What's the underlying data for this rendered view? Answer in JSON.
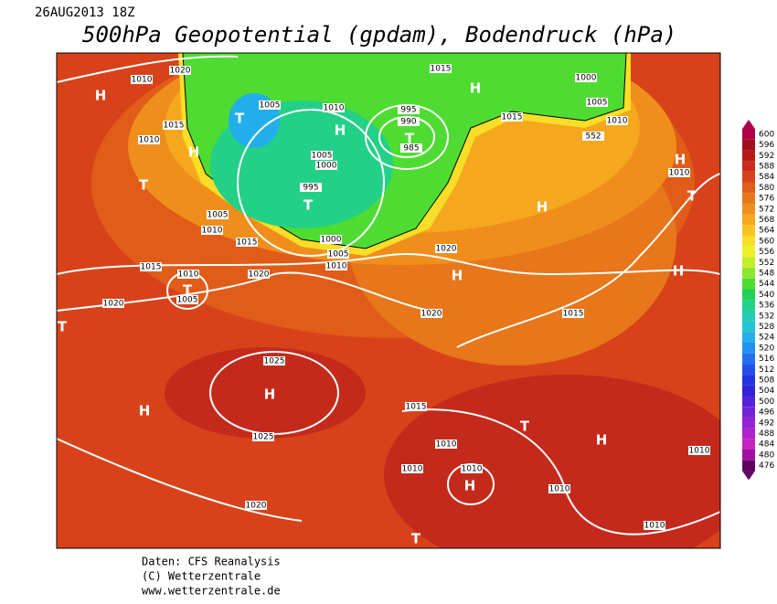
{
  "header": {
    "date": "26AUG2013 18Z",
    "title": "500hPa Geopotential (gpdam), Bodendruck (hPa)"
  },
  "colorbar": {
    "levels": [
      600,
      596,
      592,
      588,
      584,
      580,
      576,
      572,
      568,
      564,
      560,
      556,
      552,
      548,
      544,
      540,
      536,
      532,
      528,
      524,
      520,
      516,
      512,
      508,
      504,
      500,
      496,
      492,
      488,
      484,
      480,
      476
    ],
    "colors": [
      "#b0004a",
      "#a0101c",
      "#b81a18",
      "#cc2a1c",
      "#d8421a",
      "#e05c18",
      "#e8761a",
      "#f08e1c",
      "#f5a81e",
      "#f8c422",
      "#f8de26",
      "#eef02a",
      "#c4ee2a",
      "#8ce62c",
      "#4edc32",
      "#22d056",
      "#22d088",
      "#22ccb4",
      "#22c4d4",
      "#22aeea",
      "#2290f0",
      "#2270f0",
      "#2250e8",
      "#2232e0",
      "#3422d8",
      "#5422d8",
      "#7422d8",
      "#9422d6",
      "#b022d0",
      "#c424c0",
      "#a010a0",
      "#600060"
    ]
  },
  "map": {
    "isobar_labels": [
      "1020",
      "1010",
      "1015",
      "1010",
      "1005",
      "1010",
      "995",
      "990",
      "985",
      "1005",
      "1000",
      "995",
      "1015",
      "1000",
      "1005",
      "1015",
      "1010",
      "552",
      "1005",
      "1010",
      "1015",
      "1000",
      "1005",
      "1010",
      "1020",
      "1015",
      "1010",
      "1020",
      "1005",
      "1020",
      "1020",
      "1015",
      "1025",
      "1015",
      "1025",
      "1010",
      "1010",
      "1010",
      "1010",
      "1010",
      "1020",
      "1010",
      "1010"
    ],
    "centers": [
      "H",
      "H",
      "T",
      "H",
      "T",
      "T",
      "T",
      "H",
      "H",
      "H",
      "T",
      "H",
      "H",
      "T",
      "T",
      "H",
      "H",
      "T",
      "H",
      "H",
      "T"
    ]
  },
  "footer": {
    "lines": [
      "Daten: CFS Reanalysis",
      "(C) Wetterzentrale",
      "www.wetterzentrale.de"
    ]
  }
}
